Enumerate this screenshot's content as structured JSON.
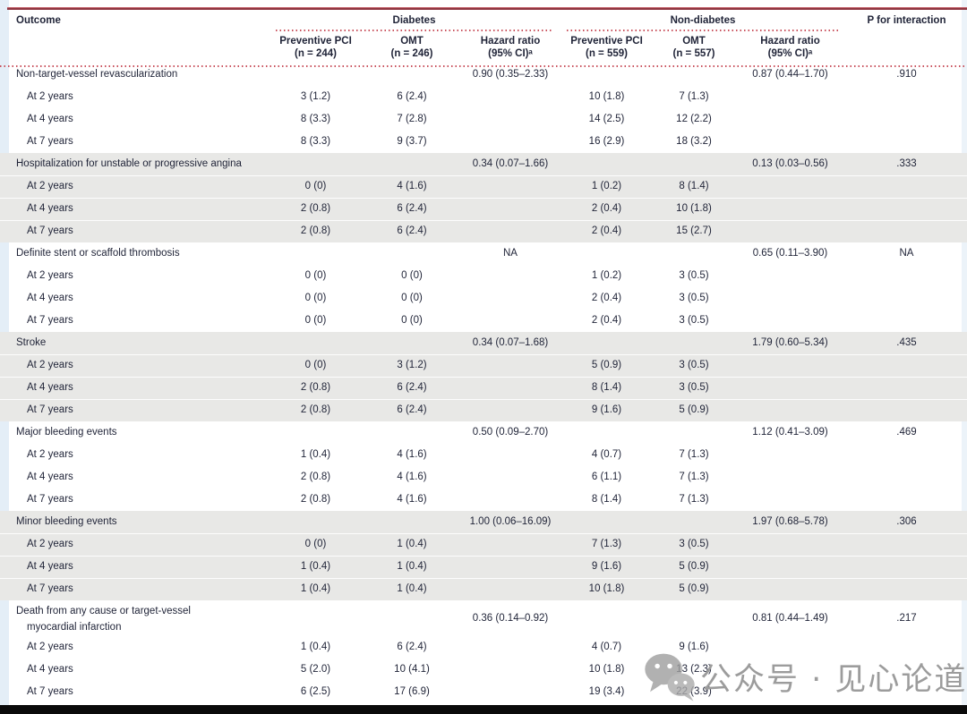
{
  "colors": {
    "top_rule_red": "#8e3540",
    "dotted_line_red": "#c9515c",
    "shaded_section_bg": "#e8e8e6",
    "text": "#1f2337",
    "watermark_gray": "#9c9c9c",
    "bottom_bar": "#0a0a0a"
  },
  "table": {
    "header": {
      "outcome": "Outcome",
      "group_diabetes": "Diabetes",
      "group_nondiabetes": "Non-diabetes",
      "p_interaction": "P for interaction",
      "sub": [
        {
          "l1": "Preventive PCI",
          "l2": "(n = 244)"
        },
        {
          "l1": "OMT",
          "l2": "(n = 246)"
        },
        {
          "l1": "Hazard ratio",
          "l2": "(95% CI)ᵃ"
        },
        {
          "l1": "Preventive PCI",
          "l2": "(n = 559)"
        },
        {
          "l1": "OMT",
          "l2": "(n = 557)"
        },
        {
          "l1": "Hazard ratio",
          "l2": "(95% CI)ᵃ"
        }
      ]
    },
    "sections": [
      {
        "title": "Non-target-vessel revascularization",
        "d_hr": "0.90 (0.35–2.33)",
        "nd_hr": "0.87 (0.44–1.70)",
        "p": ".910",
        "rows": [
          {
            "label": "At 2 years",
            "d_pci": "3 (1.2)",
            "d_omt": "6 (2.4)",
            "nd_pci": "10 (1.8)",
            "nd_omt": "7 (1.3)"
          },
          {
            "label": "At 4 years",
            "d_pci": "8 (3.3)",
            "d_omt": "7 (2.8)",
            "nd_pci": "14 (2.5)",
            "nd_omt": "12 (2.2)"
          },
          {
            "label": "At 7 years",
            "d_pci": "8 (3.3)",
            "d_omt": "9 (3.7)",
            "nd_pci": "16 (2.9)",
            "nd_omt": "18 (3.2)"
          }
        ]
      },
      {
        "title": "Hospitalization for unstable or progressive angina",
        "d_hr": "0.34 (0.07–1.66)",
        "nd_hr": "0.13 (0.03–0.56)",
        "p": ".333",
        "rows": [
          {
            "label": "At 2 years",
            "d_pci": "0 (0)",
            "d_omt": "4 (1.6)",
            "nd_pci": "1 (0.2)",
            "nd_omt": "8 (1.4)"
          },
          {
            "label": "At 4 years",
            "d_pci": "2 (0.8)",
            "d_omt": "6 (2.4)",
            "nd_pci": "2 (0.4)",
            "nd_omt": "10 (1.8)"
          },
          {
            "label": "At 7 years",
            "d_pci": "2 (0.8)",
            "d_omt": "6 (2.4)",
            "nd_pci": "2 (0.4)",
            "nd_omt": "15 (2.7)"
          }
        ]
      },
      {
        "title": "Definite stent or scaffold thrombosis",
        "d_hr": "NA",
        "nd_hr": "0.65 (0.11–3.90)",
        "p": "NA",
        "rows": [
          {
            "label": "At 2 years",
            "d_pci": "0 (0)",
            "d_omt": "0 (0)",
            "nd_pci": "1 (0.2)",
            "nd_omt": "3 (0.5)"
          },
          {
            "label": "At 4 years",
            "d_pci": "0 (0)",
            "d_omt": "0 (0)",
            "nd_pci": "2 (0.4)",
            "nd_omt": "3 (0.5)"
          },
          {
            "label": "At 7 years",
            "d_pci": "0 (0)",
            "d_omt": "0 (0)",
            "nd_pci": "2 (0.4)",
            "nd_omt": "3 (0.5)"
          }
        ]
      },
      {
        "title": "Stroke",
        "d_hr": "0.34 (0.07–1.68)",
        "nd_hr": "1.79 (0.60–5.34)",
        "p": ".435",
        "rows": [
          {
            "label": "At 2 years",
            "d_pci": "0 (0)",
            "d_omt": "3 (1.2)",
            "nd_pci": "5 (0.9)",
            "nd_omt": "3 (0.5)"
          },
          {
            "label": "At 4 years",
            "d_pci": "2 (0.8)",
            "d_omt": "6 (2.4)",
            "nd_pci": "8 (1.4)",
            "nd_omt": "3 (0.5)"
          },
          {
            "label": "At 7 years",
            "d_pci": "2 (0.8)",
            "d_omt": "6 (2.4)",
            "nd_pci": "9 (1.6)",
            "nd_omt": "5 (0.9)"
          }
        ]
      },
      {
        "title": "Major bleeding events",
        "d_hr": "0.50 (0.09–2.70)",
        "nd_hr": "1.12 (0.41–3.09)",
        "p": ".469",
        "rows": [
          {
            "label": "At 2 years",
            "d_pci": "1 (0.4)",
            "d_omt": "4 (1.6)",
            "nd_pci": "4 (0.7)",
            "nd_omt": "7 (1.3)"
          },
          {
            "label": "At 4 years",
            "d_pci": "2 (0.8)",
            "d_omt": "4 (1.6)",
            "nd_pci": "6 (1.1)",
            "nd_omt": "7 (1.3)"
          },
          {
            "label": "At 7 years",
            "d_pci": "2 (0.8)",
            "d_omt": "4 (1.6)",
            "nd_pci": "8 (1.4)",
            "nd_omt": "7 (1.3)"
          }
        ]
      },
      {
        "title": "Minor bleeding events",
        "d_hr": "1.00 (0.06–16.09)",
        "nd_hr": "1.97 (0.68–5.78)",
        "p": ".306",
        "rows": [
          {
            "label": "At 2 years",
            "d_pci": "0 (0)",
            "d_omt": "1 (0.4)",
            "nd_pci": "7 (1.3)",
            "nd_omt": "3 (0.5)"
          },
          {
            "label": "At 4 years",
            "d_pci": "1 (0.4)",
            "d_omt": "1 (0.4)",
            "nd_pci": "9 (1.6)",
            "nd_omt": "5 (0.9)"
          },
          {
            "label": "At 7 years",
            "d_pci": "1 (0.4)",
            "d_omt": "1 (0.4)",
            "nd_pci": "10 (1.8)",
            "nd_omt": "5 (0.9)"
          }
        ]
      },
      {
        "title": "Death from any cause or target-vessel",
        "title2": "myocardial infarction",
        "d_hr": "0.36 (0.14–0.92)",
        "nd_hr": "0.81 (0.44–1.49)",
        "p": ".217",
        "rows": [
          {
            "label": "At 2 years",
            "d_pci": "1 (0.4)",
            "d_omt": "6 (2.4)",
            "nd_pci": "4 (0.7)",
            "nd_omt": "9 (1.6)"
          },
          {
            "label": "At 4 years",
            "d_pci": "5 (2.0)",
            "d_omt": "10 (4.1)",
            "nd_pci": "10 (1.8)",
            "nd_omt": "13 (2.3)"
          },
          {
            "label": "At 7 years",
            "d_pci": "6 (2.5)",
            "d_omt": "17 (6.9)",
            "nd_pci": "19 (3.4)",
            "nd_omt": "22 (3.9)"
          }
        ]
      }
    ]
  },
  "watermark": {
    "icon": "wechat-icon",
    "text": "公众号 · 见心论道"
  }
}
